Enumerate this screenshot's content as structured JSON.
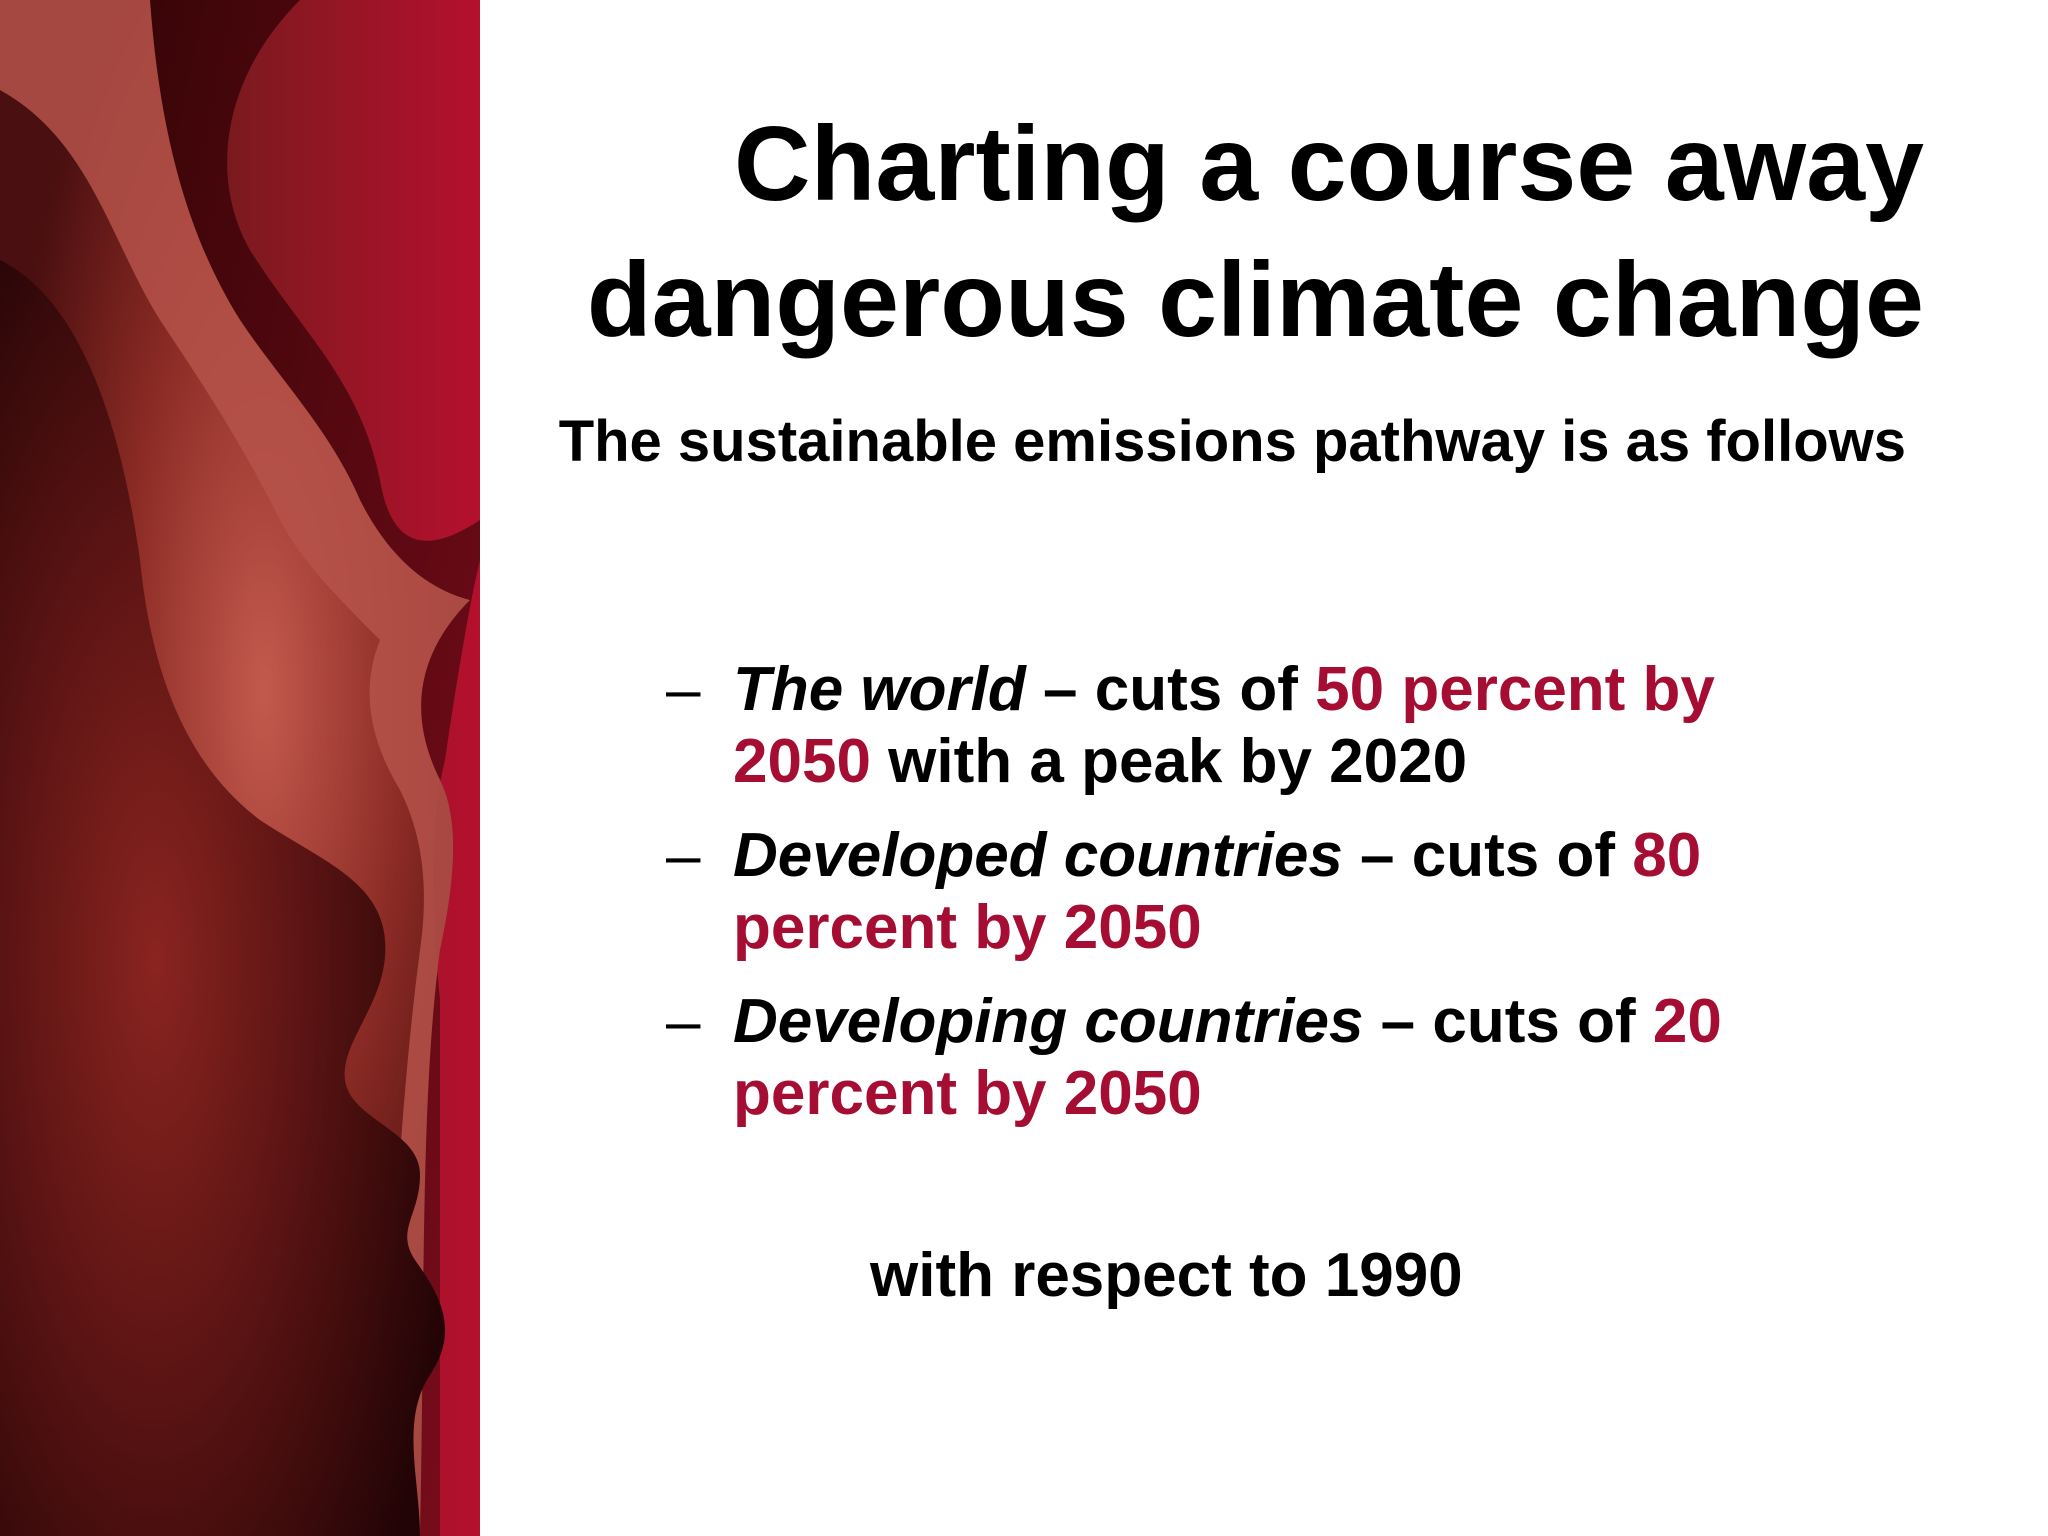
{
  "slide": {
    "title": "Charting a course away dangerous climate change",
    "subtitle": "The sustainable emissions pathway is as follows",
    "bullets": [
      {
        "dash": "–",
        "subject": "The world",
        "connector": " – cuts of ",
        "highlight": "50 percent by 2050",
        "suffix": " with a peak by 2020"
      },
      {
        "dash": "–",
        "subject": "Developed countries",
        "connector": " – cuts of ",
        "highlight": "80 percent by 2050",
        "suffix": ""
      },
      {
        "dash": "–",
        "subject": "Developing countries",
        "connector": " – cuts of ",
        "highlight": "20 percent by 2050",
        "suffix": ""
      }
    ],
    "footer": "with respect to 1990"
  },
  "colors": {
    "highlight": "#a50d33",
    "text": "#000000",
    "background": "#ffffff",
    "panel_dark": "#3a0a0c",
    "panel_red": "#a8102c",
    "panel_light": "#b8544a"
  }
}
